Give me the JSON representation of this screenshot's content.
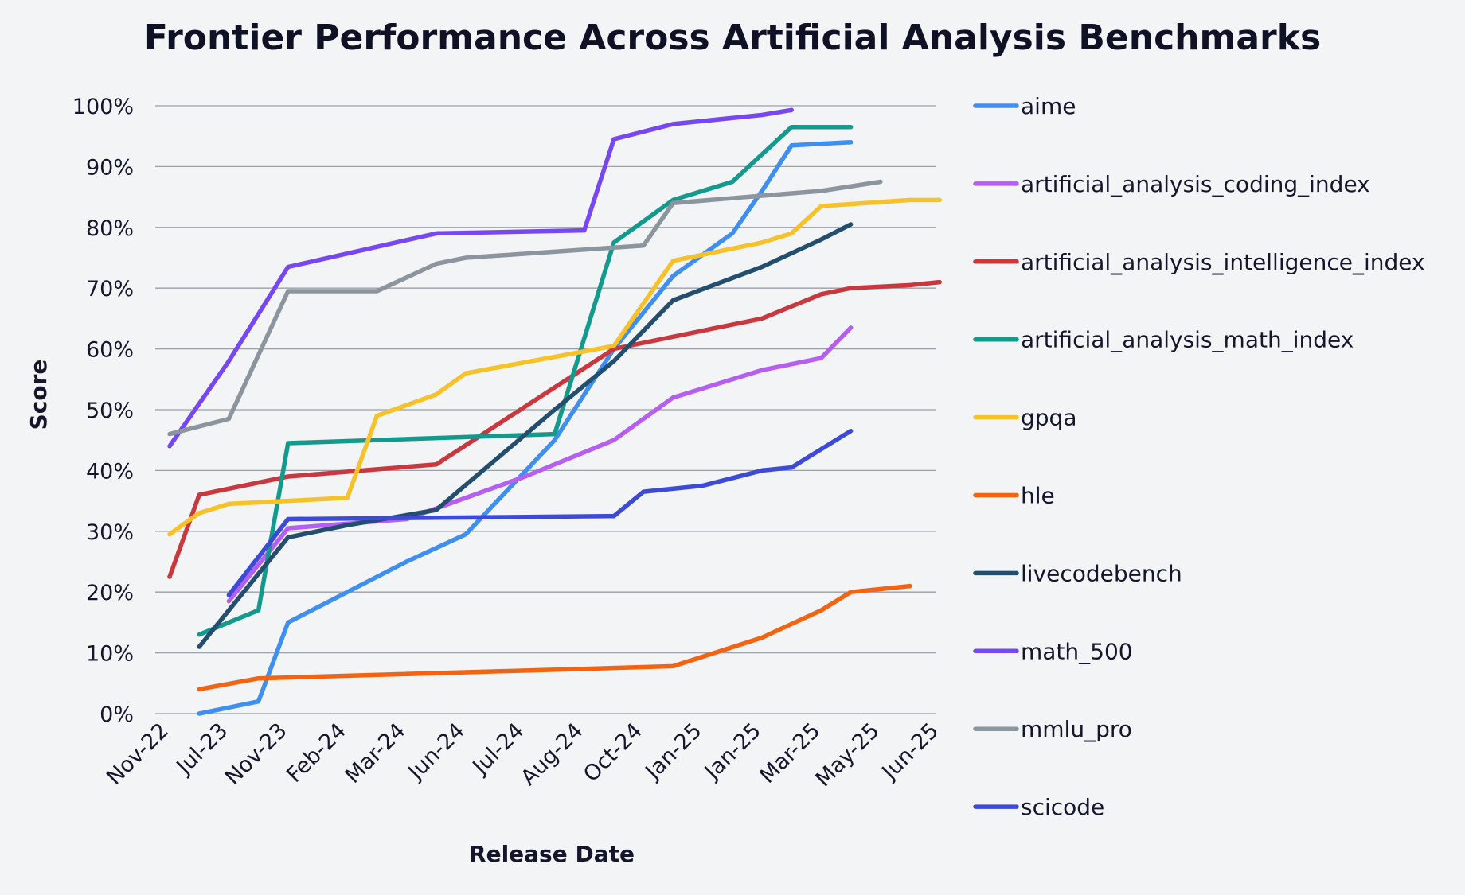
{
  "chart_data": {
    "type": "line",
    "title": "Frontier Performance Across Artificial Analysis Benchmarks",
    "xlabel": "Release Date",
    "ylabel": "Score",
    "ylim": [
      0,
      100
    ],
    "y_ticks": [
      "0%",
      "10%",
      "20%",
      "30%",
      "40%",
      "50%",
      "60%",
      "70%",
      "80%",
      "90%",
      "100%"
    ],
    "categories": [
      "Nov-22",
      "Jul-23",
      "Nov-23",
      "Feb-24",
      "Mar-24",
      "Jun-24",
      "Jul-24",
      "Aug-24",
      "Oct-24",
      "Jan-25",
      "Jan-25",
      "Mar-25",
      "May-25",
      "Jun-25"
    ],
    "grid": true,
    "legend_position": "right",
    "series": [
      {
        "name": "aime",
        "color": "#3f8ff0",
        "points": [
          [
            0.5,
            0
          ],
          [
            1.5,
            2
          ],
          [
            2,
            15
          ],
          [
            3,
            20
          ],
          [
            4,
            25
          ],
          [
            5,
            29.5
          ],
          [
            6.5,
            45
          ],
          [
            7.5,
            60
          ],
          [
            8.5,
            72
          ],
          [
            9.5,
            79
          ],
          [
            10,
            86
          ],
          [
            10.5,
            93.5
          ],
          [
            11.5,
            94
          ]
        ]
      },
      {
        "name": "artificial_analysis_coding_index",
        "color": "#b55ef0",
        "points": [
          [
            1,
            18.5
          ],
          [
            2,
            30.5
          ],
          [
            4,
            32
          ],
          [
            6,
            39
          ],
          [
            7.5,
            45
          ],
          [
            8.5,
            52
          ],
          [
            10,
            56.5
          ],
          [
            11,
            58.5
          ],
          [
            11.5,
            63.5
          ]
        ]
      },
      {
        "name": "artificial_analysis_intelligence_index",
        "color": "#c9383f",
        "points": [
          [
            0,
            22.5
          ],
          [
            0.5,
            36
          ],
          [
            2,
            39
          ],
          [
            4.5,
            41
          ],
          [
            7.5,
            60
          ],
          [
            10,
            65
          ],
          [
            10.5,
            67
          ],
          [
            11,
            69
          ],
          [
            11.5,
            70
          ],
          [
            12.5,
            70.5
          ],
          [
            13,
            71
          ]
        ]
      },
      {
        "name": "artificial_analysis_math_index",
        "color": "#139a8d",
        "points": [
          [
            0.5,
            13
          ],
          [
            1.5,
            17
          ],
          [
            2,
            44.5
          ],
          [
            6.5,
            46
          ],
          [
            7.5,
            77.5
          ],
          [
            8.5,
            84.5
          ],
          [
            9.5,
            87.5
          ],
          [
            10,
            92
          ],
          [
            10.5,
            96.5
          ],
          [
            11.5,
            96.5
          ]
        ]
      },
      {
        "name": "gpqa",
        "color": "#f7c229",
        "points": [
          [
            0,
            29.5
          ],
          [
            0.5,
            33
          ],
          [
            1,
            34.5
          ],
          [
            2,
            35
          ],
          [
            3,
            35.5
          ],
          [
            3.5,
            49
          ],
          [
            4.5,
            52.5
          ],
          [
            5,
            56
          ],
          [
            7.5,
            60.5
          ],
          [
            8.5,
            74.5
          ],
          [
            10,
            77.5
          ],
          [
            10.5,
            79
          ],
          [
            11,
            83.5
          ],
          [
            12.5,
            84.5
          ],
          [
            13,
            84.5
          ]
        ]
      },
      {
        "name": "hle",
        "color": "#f26411",
        "points": [
          [
            0.5,
            4
          ],
          [
            1.5,
            5.8
          ],
          [
            8.5,
            7.8
          ],
          [
            10,
            12.5
          ],
          [
            11,
            17
          ],
          [
            11.5,
            20
          ],
          [
            12.5,
            21
          ]
        ]
      },
      {
        "name": "livecodebench",
        "color": "#244e6e",
        "points": [
          [
            0.5,
            11
          ],
          [
            2,
            29
          ],
          [
            3,
            31
          ],
          [
            4.5,
            33.5
          ],
          [
            6.5,
            50
          ],
          [
            7.5,
            58
          ],
          [
            8.5,
            68
          ],
          [
            10,
            73.5
          ],
          [
            11,
            78
          ],
          [
            11.5,
            80.5
          ]
        ]
      },
      {
        "name": "math_500",
        "color": "#7647f2",
        "points": [
          [
            0,
            44
          ],
          [
            1,
            58
          ],
          [
            2,
            73.5
          ],
          [
            4.5,
            79
          ],
          [
            7,
            79.5
          ],
          [
            7.5,
            94.5
          ],
          [
            8.5,
            97
          ],
          [
            10,
            98.5
          ],
          [
            10.5,
            99.3
          ]
        ]
      },
      {
        "name": "mmlu_pro",
        "color": "#8c959e",
        "points": [
          [
            0,
            46
          ],
          [
            1,
            48.5
          ],
          [
            2,
            69.5
          ],
          [
            3.5,
            69.5
          ],
          [
            4.5,
            74
          ],
          [
            5,
            75
          ],
          [
            8,
            77
          ],
          [
            8.5,
            84
          ],
          [
            11,
            86
          ],
          [
            12,
            87.5
          ]
        ]
      },
      {
        "name": "scicode",
        "color": "#3d4ad6",
        "points": [
          [
            1,
            19.5
          ],
          [
            2,
            32
          ],
          [
            7.5,
            32.5
          ],
          [
            8,
            36.5
          ],
          [
            9,
            37.5
          ],
          [
            10,
            40
          ],
          [
            10.5,
            40.5
          ],
          [
            11.5,
            46.5
          ]
        ]
      }
    ]
  }
}
